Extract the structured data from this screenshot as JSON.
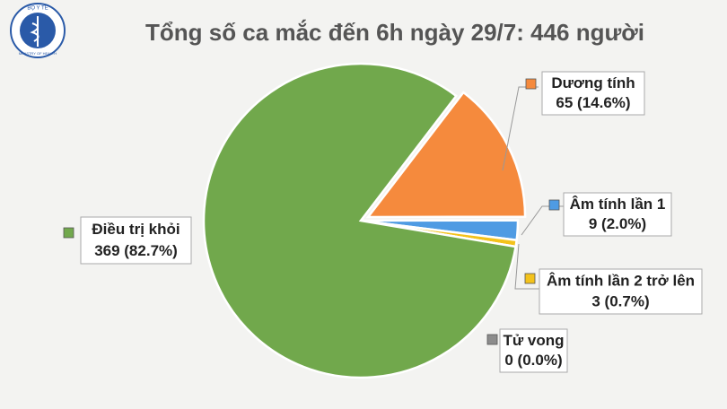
{
  "logo": [
    "BỘ Y TẾ",
    "MINISTRY OF HEALTH"
  ],
  "chart_data": {
    "type": "pie",
    "title": "Tổng số ca mắc đến 6h ngày 29/7: 446 người",
    "categories": [
      "Dương tính",
      "Âm tính lần 1",
      "Âm tính lần 2 trở lên",
      "Tử vong",
      "Điều trị khỏi"
    ],
    "values": [
      65,
      9,
      3,
      0,
      369
    ],
    "value_labels": [
      "65 (14.6%)",
      "9 (2.0%)",
      "3 (0.7%)",
      "0 (0.0%)",
      "369 (82.7%)"
    ],
    "colors": [
      "#f58a3d",
      "#4f9be3",
      "#f3c21b",
      "#8c8c8c",
      "#71a84c"
    ],
    "exploded": [
      true,
      false,
      false,
      false,
      false
    ]
  }
}
